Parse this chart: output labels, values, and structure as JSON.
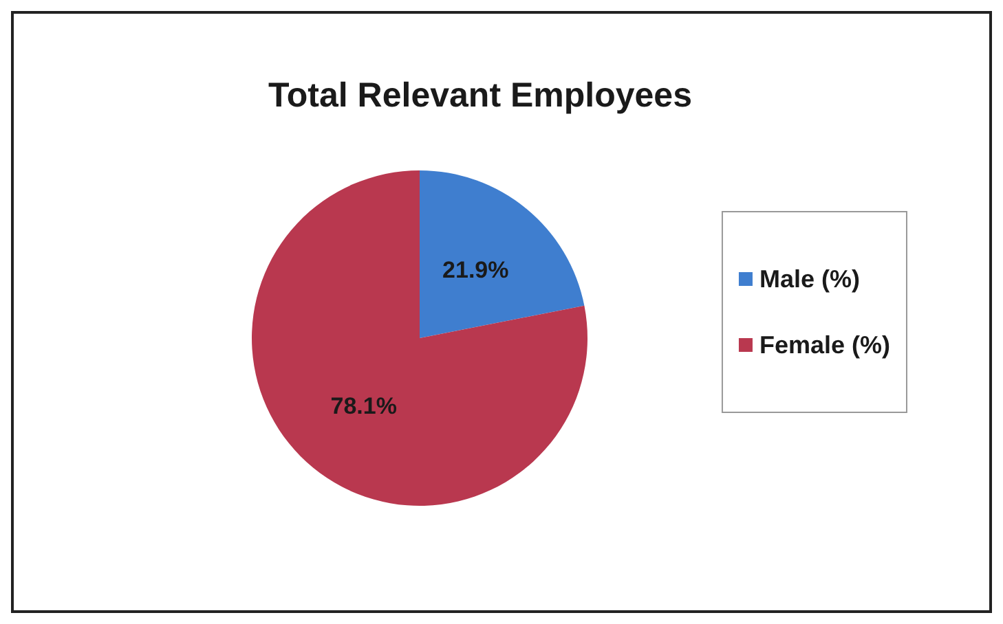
{
  "chart_data": {
    "type": "pie",
    "title": "Total Relevant Employees",
    "categories": [
      "Male (%)",
      "Female (%)"
    ],
    "values": [
      21.9,
      78.1
    ],
    "colors": [
      "#3f7ecf",
      "#b9384f"
    ],
    "value_labels": [
      "21.9%",
      "78.1%"
    ],
    "legend": "right"
  }
}
